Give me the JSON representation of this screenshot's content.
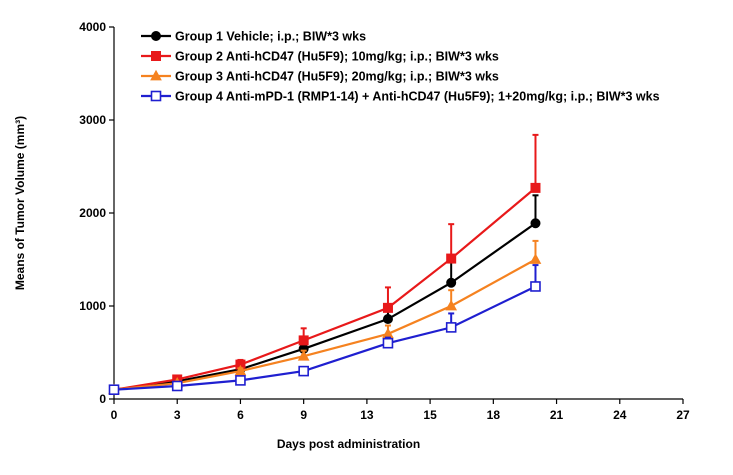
{
  "chart_data": {
    "type": "line",
    "title": "",
    "xlabel": "Days post administration",
    "ylabel": "Means of Tumor Volume (mm³)",
    "xlim": [
      0,
      27
    ],
    "ylim": [
      0,
      4000
    ],
    "xticks": [
      0,
      3,
      6,
      9,
      13,
      15,
      18,
      21,
      24,
      27
    ],
    "xtick_labels": [
      "0",
      "3",
      "6",
      "9",
      "13",
      "15",
      "18",
      "21",
      "24",
      "27"
    ],
    "yticks": [
      0,
      1000,
      2000,
      3000,
      4000
    ],
    "ytick_labels": [
      "0",
      "1000",
      "2000",
      "3000",
      "4000"
    ],
    "legend_position": "top-left",
    "grid": false,
    "series": [
      {
        "name": "Group 1 Vehicle; i.p.; BIW*3 wks",
        "color": "#000000",
        "marker": "circle",
        "x": [
          0,
          3,
          6,
          9,
          13,
          16,
          20
        ],
        "y": [
          100,
          190,
          320,
          540,
          860,
          1250,
          1890
        ],
        "err": [
          0,
          20,
          40,
          80,
          140,
          220,
          300
        ]
      },
      {
        "name": "Group 2 Anti-hCD47 (Hu5F9); 10mg/kg; i.p.; BIW*3 wks",
        "color": "#e8191a",
        "marker": "square",
        "x": [
          0,
          3,
          6,
          9,
          13,
          16,
          20
        ],
        "y": [
          100,
          210,
          370,
          630,
          980,
          1510,
          2270
        ],
        "err": [
          0,
          20,
          50,
          130,
          220,
          370,
          570
        ]
      },
      {
        "name": "Group 3 Anti-hCD47 (Hu5F9); 20mg/kg; i.p.; BIW*3 wks",
        "color": "#f58220",
        "marker": "triangle",
        "x": [
          0,
          3,
          6,
          9,
          13,
          16,
          20
        ],
        "y": [
          100,
          170,
          300,
          460,
          700,
          1000,
          1500
        ],
        "err": [
          0,
          15,
          30,
          60,
          90,
          170,
          200
        ]
      },
      {
        "name": "Group 4 Anti-mPD-1 (RMP1-14) + Anti-hCD47 (Hu5F9); 1+20mg/kg; i.p.; BIW*3 wks",
        "color": "#1f1fd0",
        "marker": "open-square",
        "x": [
          0,
          3,
          6,
          9,
          13,
          16,
          20
        ],
        "y": [
          100,
          140,
          200,
          300,
          600,
          770,
          1210
        ],
        "err": [
          0,
          10,
          20,
          40,
          60,
          150,
          230
        ]
      }
    ]
  }
}
